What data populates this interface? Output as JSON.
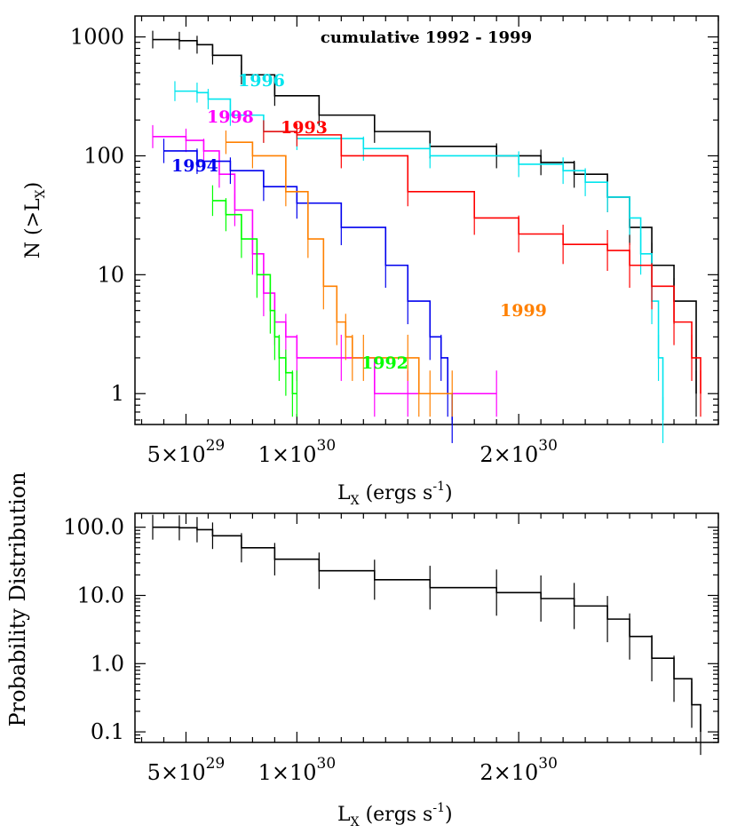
{
  "chart_data": [
    {
      "type": "line",
      "subtype": "cumulative step distribution, log-y",
      "title": "cumulative 1992 - 1999",
      "xlabel": "L_X (ergs s^-1)",
      "ylabel": "N (>L_X)",
      "x_ticks": [
        {
          "value": 5e+29,
          "mant": "5×10",
          "exp": "29"
        },
        {
          "value": 1e+30,
          "mant": "1×10",
          "exp": "30"
        },
        {
          "value": 2e+30,
          "mant": "2×10",
          "exp": "30"
        }
      ],
      "y_ticks": [
        {
          "value": 1,
          "label": "1"
        },
        {
          "value": 10,
          "label": "10"
        },
        {
          "value": 100,
          "label": "100"
        },
        {
          "value": 1000,
          "label": "1000"
        }
      ],
      "xlim_x1e30": [
        0.27,
        2.9
      ],
      "ylim": [
        0.55,
        1500
      ],
      "series": [
        {
          "name": "cumulative",
          "label": "",
          "color": "#000000",
          "x_x1e30": [
            0.35,
            0.47,
            0.55,
            0.62,
            0.75,
            0.9,
            1.1,
            1.35,
            1.6,
            1.9,
            2.1,
            2.25,
            2.4,
            2.5,
            2.6,
            2.7,
            2.8
          ],
          "y": [
            950,
            930,
            860,
            700,
            480,
            320,
            220,
            160,
            120,
            100,
            88,
            70,
            45,
            25,
            12,
            6,
            1
          ]
        },
        {
          "name": "1996",
          "label": "1996",
          "color": "#00e5ee",
          "x_x1e30": [
            0.45,
            0.55,
            0.6,
            0.7,
            0.85,
            1.0,
            1.3,
            1.6,
            2.0,
            2.2,
            2.3,
            2.4,
            2.5,
            2.55,
            2.6,
            2.63,
            2.65
          ],
          "y": [
            350,
            340,
            300,
            220,
            160,
            140,
            115,
            100,
            85,
            75,
            60,
            45,
            30,
            15,
            6,
            2,
            0.6
          ]
        },
        {
          "name": "1993",
          "label": "1993",
          "color": "#ff0000",
          "x_x1e30": [
            0.85,
            1.0,
            1.2,
            1.5,
            1.8,
            2.0,
            2.2,
            2.4,
            2.5,
            2.6,
            2.7,
            2.78,
            2.82
          ],
          "y": [
            160,
            150,
            100,
            50,
            30,
            22,
            18,
            16,
            12,
            8,
            4,
            2,
            1
          ]
        },
        {
          "name": "1998",
          "label": "1998",
          "color": "#ff00ff",
          "x_x1e30": [
            0.35,
            0.5,
            0.58,
            0.65,
            0.72,
            0.8,
            0.85,
            0.9,
            0.95,
            1.0,
            1.2,
            1.35,
            1.5,
            1.9
          ],
          "y": [
            145,
            135,
            110,
            70,
            35,
            15,
            7,
            4,
            3,
            2,
            2,
            1,
            1,
            1
          ]
        },
        {
          "name": "1994",
          "label": "1994",
          "color": "#0000ee",
          "x_x1e30": [
            0.4,
            0.55,
            0.7,
            0.85,
            1.0,
            1.2,
            1.4,
            1.5,
            1.6,
            1.65,
            1.68,
            1.7
          ],
          "y": [
            110,
            90,
            75,
            55,
            40,
            25,
            12,
            6,
            3,
            2,
            1,
            0.6
          ]
        },
        {
          "name": "1999",
          "label": "1999",
          "color": "#ff8000",
          "x_x1e30": [
            0.68,
            0.8,
            0.95,
            1.05,
            1.12,
            1.18,
            1.22,
            1.25,
            1.3,
            1.5,
            1.55,
            1.6,
            1.7
          ],
          "y": [
            130,
            100,
            50,
            20,
            8,
            4,
            3,
            2,
            2,
            2,
            1,
            1,
            1
          ]
        },
        {
          "name": "1992",
          "label": "1992",
          "color": "#00ff00",
          "x_x1e30": [
            0.62,
            0.68,
            0.75,
            0.82,
            0.88,
            0.9,
            0.92,
            0.95,
            0.98,
            1.0
          ],
          "y": [
            42,
            32,
            20,
            10,
            5,
            3,
            2,
            1.5,
            1,
            1
          ]
        }
      ]
    },
    {
      "type": "line",
      "subtype": "probability distribution, log-y",
      "title": "",
      "xlabel": "L_X (ergs s^-1)",
      "ylabel": "Probability Distribution",
      "x_ticks": [
        {
          "value": 5e+29,
          "mant": "5×10",
          "exp": "29"
        },
        {
          "value": 1e+30,
          "mant": "1×10",
          "exp": "30"
        },
        {
          "value": 2e+30,
          "mant": "2×10",
          "exp": "30"
        }
      ],
      "y_ticks": [
        {
          "value": 0.1,
          "label": "0.1"
        },
        {
          "value": 1,
          "label": "1.0"
        },
        {
          "value": 10,
          "label": "10.0"
        },
        {
          "value": 100,
          "label": "100.0"
        }
      ],
      "xlim_x1e30": [
        0.27,
        2.9
      ],
      "ylim": [
        0.07,
        160
      ],
      "series": [
        {
          "name": "all",
          "color": "#000000",
          "x_x1e30": [
            0.35,
            0.47,
            0.55,
            0.62,
            0.75,
            0.9,
            1.1,
            1.35,
            1.6,
            1.9,
            2.1,
            2.25,
            2.4,
            2.5,
            2.6,
            2.7,
            2.78,
            2.82
          ],
          "y": [
            100,
            98,
            92,
            75,
            50,
            34,
            23,
            17,
            13,
            11,
            9,
            7,
            4.5,
            2.5,
            1.2,
            0.6,
            0.25,
            0.1
          ]
        }
      ]
    }
  ]
}
